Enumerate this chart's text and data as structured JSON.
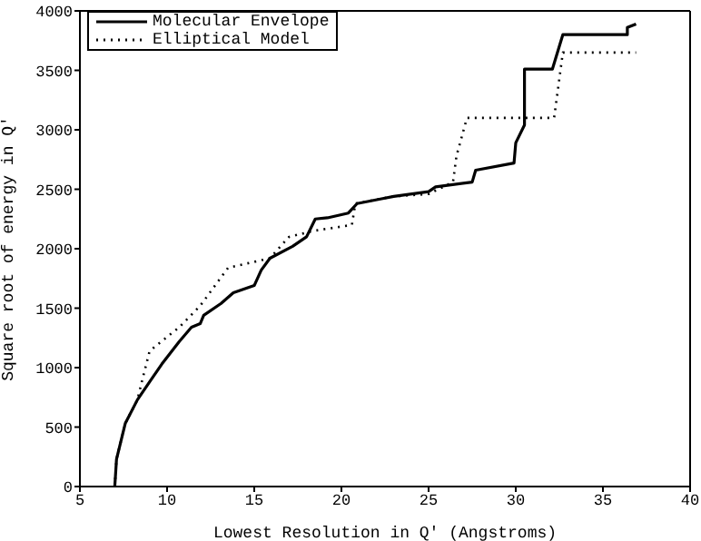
{
  "chart_data": {
    "type": "line",
    "xlabel": "Lowest Resolution in Q′ (Angstroms)",
    "ylabel": "Square root of energy in Q′",
    "xlim": [
      5,
      40
    ],
    "ylim": [
      0,
      4000
    ],
    "xticks": [
      5,
      10,
      15,
      20,
      25,
      30,
      35,
      40
    ],
    "yticks": [
      0,
      500,
      1000,
      1500,
      2000,
      2500,
      3000,
      3500,
      4000
    ],
    "grid": false,
    "legend": "top left",
    "marker": "none",
    "series": [
      {
        "name": "Molecular Envelope",
        "color": "#000000",
        "line_style": "solid",
        "x": [
          7.0,
          7.1,
          7.6,
          8.3,
          9.0,
          9.7,
          10.7,
          11.4,
          11.9,
          12.1,
          13.1,
          13.8,
          15.0,
          15.4,
          15.9,
          17.2,
          18.0,
          18.5,
          19.2,
          20.4,
          20.9,
          22.3,
          23.0,
          25.0,
          25.4,
          27.5,
          27.7,
          29.9,
          30.0,
          30.5,
          30.5,
          32.1,
          32.7,
          36.4,
          36.4,
          36.9
        ],
        "values": [
          0,
          230,
          530,
          730,
          880,
          1030,
          1220,
          1340,
          1370,
          1440,
          1540,
          1630,
          1690,
          1820,
          1920,
          2020,
          2100,
          2250,
          2260,
          2300,
          2380,
          2420,
          2440,
          2480,
          2520,
          2560,
          2660,
          2720,
          2890,
          3040,
          3510,
          3510,
          3800,
          3800,
          3860,
          3890
        ]
      },
      {
        "name": "Elliptical Model",
        "color": "#000000",
        "line_style": "dotted",
        "x": [
          7.0,
          7.1,
          7.6,
          8.3,
          8.5,
          9.0,
          10.7,
          11.9,
          13.5,
          15.9,
          17.0,
          18.4,
          20.6,
          20.8,
          23.0,
          25.0,
          26.4,
          26.6,
          27.2,
          32.2,
          32.7,
          36.9
        ],
        "values": [
          0,
          230,
          530,
          730,
          850,
          1140,
          1340,
          1520,
          1840,
          1920,
          2100,
          2150,
          2200,
          2380,
          2440,
          2460,
          2560,
          2780,
          3100,
          3100,
          3650,
          3650
        ]
      }
    ]
  }
}
